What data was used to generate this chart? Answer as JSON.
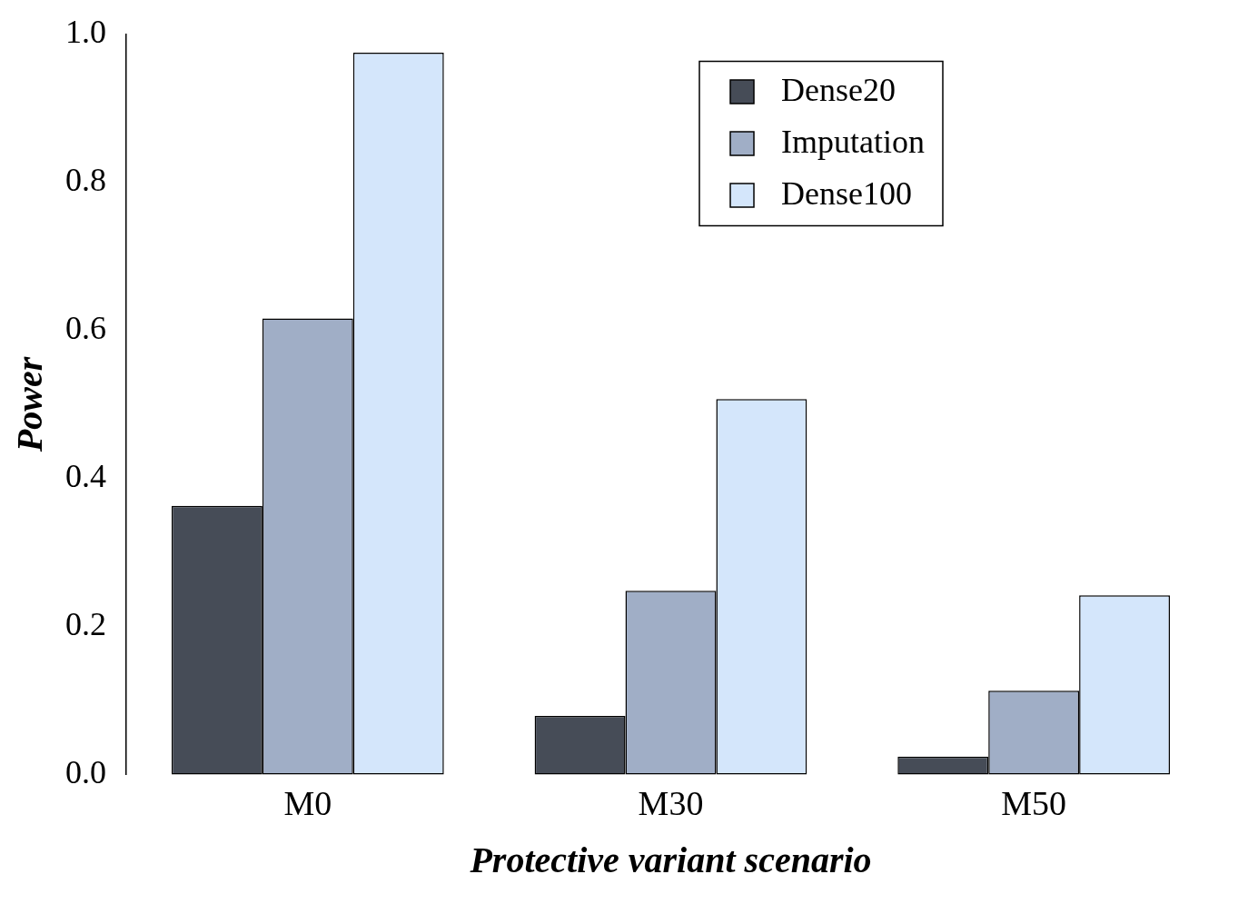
{
  "chart_data": {
    "type": "bar",
    "xlabel": "Protective variant scenario",
    "ylabel": "Power",
    "categories": [
      "M0",
      "M30",
      "M50"
    ],
    "series": [
      {
        "name": "Dense20",
        "color": "#464c57",
        "values": [
          0.363,
          0.079,
          0.024
        ]
      },
      {
        "name": "Imputation",
        "color": "#a0aec6",
        "values": [
          0.616,
          0.248,
          0.113
        ]
      },
      {
        "name": "Dense100",
        "color": "#d4e6fb",
        "values": [
          0.975,
          0.507,
          0.242
        ]
      }
    ],
    "ylim": [
      0,
      1
    ],
    "yticks": [
      {
        "value": 0,
        "label": "0.0"
      },
      0.2,
      0.4,
      0.6,
      0.8,
      {
        "value": 1,
        "label": "1.0"
      }
    ],
    "grid": false,
    "legend": "top right"
  }
}
